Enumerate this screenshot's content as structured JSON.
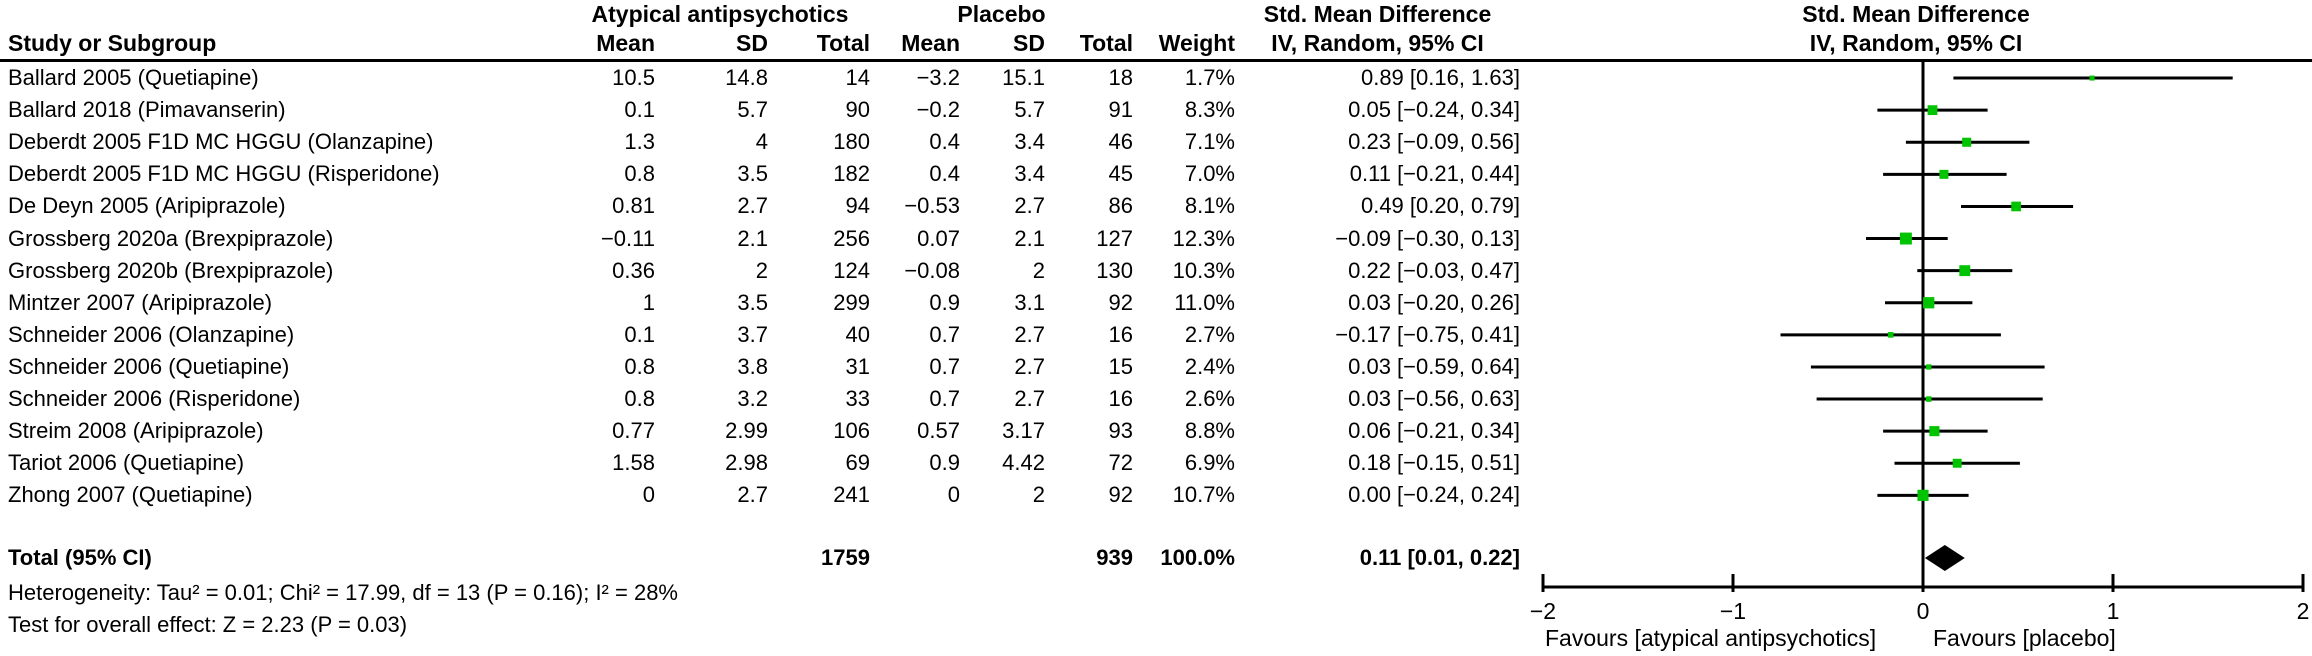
{
  "chart_data": {
    "type": "forest",
    "header": {
      "study": "Study or Subgroup",
      "group1": "Atypical antipsychotics",
      "group2": "Placebo",
      "mean": "Mean",
      "sd": "SD",
      "total": "Total",
      "weight": "Weight",
      "smd_line1": "Std. Mean Difference",
      "smd_line2": "IV, Random, 95% CI"
    },
    "studies": [
      {
        "study": "Ballard 2005 (Quetiapine)",
        "t_mean": "10.5",
        "t_sd": "14.8",
        "t_total": "14",
        "c_mean": "−3.2",
        "c_sd": "15.1",
        "c_total": "18",
        "weight": "1.7%",
        "ci": "0.89 [0.16, 1.63]",
        "smd": 0.89,
        "lo": 0.16,
        "hi": 1.63,
        "w": 1.7
      },
      {
        "study": "Ballard 2018 (Pimavanserin)",
        "t_mean": "0.1",
        "t_sd": "5.7",
        "t_total": "90",
        "c_mean": "−0.2",
        "c_sd": "5.7",
        "c_total": "91",
        "weight": "8.3%",
        "ci": "0.05 [−0.24, 0.34]",
        "smd": 0.05,
        "lo": -0.24,
        "hi": 0.34,
        "w": 8.3
      },
      {
        "study": "Deberdt 2005 F1D MC HGGU (Olanzapine)",
        "t_mean": "1.3",
        "t_sd": "4",
        "t_total": "180",
        "c_mean": "0.4",
        "c_sd": "3.4",
        "c_total": "46",
        "weight": "7.1%",
        "ci": "0.23 [−0.09, 0.56]",
        "smd": 0.23,
        "lo": -0.09,
        "hi": 0.56,
        "w": 7.1
      },
      {
        "study": "Deberdt 2005 F1D MC HGGU (Risperidone)",
        "t_mean": "0.8",
        "t_sd": "3.5",
        "t_total": "182",
        "c_mean": "0.4",
        "c_sd": "3.4",
        "c_total": "45",
        "weight": "7.0%",
        "ci": "0.11 [−0.21, 0.44]",
        "smd": 0.11,
        "lo": -0.21,
        "hi": 0.44,
        "w": 7.0
      },
      {
        "study": "De Deyn 2005 (Aripiprazole)",
        "t_mean": "0.81",
        "t_sd": "2.7",
        "t_total": "94",
        "c_mean": "−0.53",
        "c_sd": "2.7",
        "c_total": "86",
        "weight": "8.1%",
        "ci": "0.49 [0.20, 0.79]",
        "smd": 0.49,
        "lo": 0.2,
        "hi": 0.79,
        "w": 8.1
      },
      {
        "study": "Grossberg 2020a (Brexpiprazole)",
        "t_mean": "−0.11",
        "t_sd": "2.1",
        "t_total": "256",
        "c_mean": "0.07",
        "c_sd": "2.1",
        "c_total": "127",
        "weight": "12.3%",
        "ci": "−0.09 [−0.30, 0.13]",
        "smd": -0.09,
        "lo": -0.3,
        "hi": 0.13,
        "w": 12.3
      },
      {
        "study": "Grossberg 2020b (Brexpiprazole)",
        "t_mean": "0.36",
        "t_sd": "2",
        "t_total": "124",
        "c_mean": "−0.08",
        "c_sd": "2",
        "c_total": "130",
        "weight": "10.3%",
        "ci": "0.22 [−0.03, 0.47]",
        "smd": 0.22,
        "lo": -0.03,
        "hi": 0.47,
        "w": 10.3
      },
      {
        "study": "Mintzer 2007 (Aripiprazole)",
        "t_mean": "1",
        "t_sd": "3.5",
        "t_total": "299",
        "c_mean": "0.9",
        "c_sd": "3.1",
        "c_total": "92",
        "weight": "11.0%",
        "ci": "0.03 [−0.20, 0.26]",
        "smd": 0.03,
        "lo": -0.2,
        "hi": 0.26,
        "w": 11.0
      },
      {
        "study": "Schneider 2006 (Olanzapine)",
        "t_mean": "0.1",
        "t_sd": "3.7",
        "t_total": "40",
        "c_mean": "0.7",
        "c_sd": "2.7",
        "c_total": "16",
        "weight": "2.7%",
        "ci": "−0.17 [−0.75, 0.41]",
        "smd": -0.17,
        "lo": -0.75,
        "hi": 0.41,
        "w": 2.7
      },
      {
        "study": "Schneider 2006 (Quetiapine)",
        "t_mean": "0.8",
        "t_sd": "3.8",
        "t_total": "31",
        "c_mean": "0.7",
        "c_sd": "2.7",
        "c_total": "15",
        "weight": "2.4%",
        "ci": "0.03 [−0.59, 0.64]",
        "smd": 0.03,
        "lo": -0.59,
        "hi": 0.64,
        "w": 2.4
      },
      {
        "study": "Schneider 2006 (Risperidone)",
        "t_mean": "0.8",
        "t_sd": "3.2",
        "t_total": "33",
        "c_mean": "0.7",
        "c_sd": "2.7",
        "c_total": "16",
        "weight": "2.6%",
        "ci": "0.03 [−0.56, 0.63]",
        "smd": 0.03,
        "lo": -0.56,
        "hi": 0.63,
        "w": 2.6
      },
      {
        "study": "Streim 2008 (Aripiprazole)",
        "t_mean": "0.77",
        "t_sd": "2.99",
        "t_total": "106",
        "c_mean": "0.57",
        "c_sd": "3.17",
        "c_total": "93",
        "weight": "8.8%",
        "ci": "0.06 [−0.21, 0.34]",
        "smd": 0.06,
        "lo": -0.21,
        "hi": 0.34,
        "w": 8.8
      },
      {
        "study": "Tariot 2006 (Quetiapine)",
        "t_mean": "1.58",
        "t_sd": "2.98",
        "t_total": "69",
        "c_mean": "0.9",
        "c_sd": "4.42",
        "c_total": "72",
        "weight": "6.9%",
        "ci": "0.18 [−0.15, 0.51]",
        "smd": 0.18,
        "lo": -0.15,
        "hi": 0.51,
        "w": 6.9
      },
      {
        "study": "Zhong 2007 (Quetiapine)",
        "t_mean": "0",
        "t_sd": "2.7",
        "t_total": "241",
        "c_mean": "0",
        "c_sd": "2",
        "c_total": "92",
        "weight": "10.7%",
        "ci": "0.00 [−0.24, 0.24]",
        "smd": 0.0,
        "lo": -0.24,
        "hi": 0.24,
        "w": 10.7
      }
    ],
    "total": {
      "label": "Total (95% CI)",
      "t_total": "1759",
      "c_total": "939",
      "weight": "100.0%",
      "ci": "0.11 [0.01, 0.22]",
      "smd": 0.11,
      "lo": 0.01,
      "hi": 0.22
    },
    "footer": {
      "heterogeneity": "Heterogeneity: Tau² = 0.01; Chi² = 17.99, df = 13 (P = 0.16); I² = 28%",
      "overall_effect": "Test for overall effect: Z = 2.23 (P = 0.03)"
    },
    "axis": {
      "xlim": [
        -2,
        2
      ],
      "tick_values": [
        -2,
        -1,
        0,
        1,
        2
      ],
      "tick_labels": [
        "−2",
        "−1",
        "0",
        "1",
        "2"
      ],
      "favours_left": "Favours [atypical antipsychotics]",
      "favours_right": "Favours [placebo]"
    },
    "colors": {
      "marker_green": "#00C400",
      "line_black": "#000000"
    }
  }
}
